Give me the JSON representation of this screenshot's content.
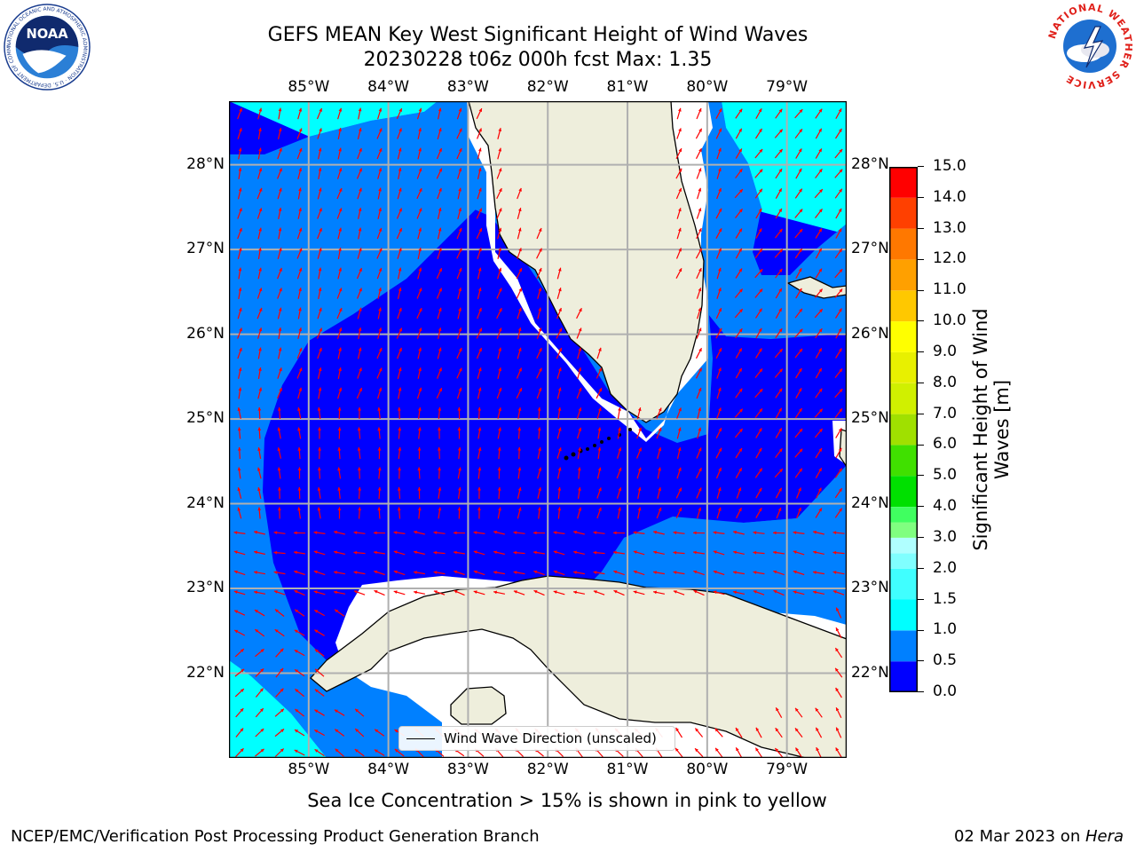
{
  "header": {
    "title_line1": "GEFS MEAN Key West Significant Height of Wind Waves",
    "title_line2": "20230228 t06z 000h fcst   Max: 1.35"
  },
  "logos": {
    "noaa": {
      "text": "NOAA",
      "ring_text": "NATIONAL OCEANIC AND ATMOSPHERIC ADMINISTRATION · U.S. DEPARTMENT OF COMMERCE"
    },
    "nws": {
      "ring_text": "NATIONAL WEATHER SERVICE"
    }
  },
  "map": {
    "projection": "plate-carree",
    "extent": {
      "lon_min": -86.0,
      "lon_max": -78.25,
      "lat_min": 21.0,
      "lat_max": 28.75
    },
    "lon_ticks": [
      "85°W",
      "84°W",
      "83°W",
      "82°W",
      "81°W",
      "80°W",
      "79°W"
    ],
    "lat_ticks": [
      "28°N",
      "27°N",
      "26°N",
      "25°N",
      "24°N",
      "23°N",
      "22°N"
    ],
    "land_color": "#eeeedc",
    "arrow_color": "#ff0000",
    "legend_label": "Wind Wave Direction (unscaled)"
  },
  "colorbar": {
    "title": "Significant Height of Wind Waves [m]",
    "ticks": [
      "15.0",
      "14.0",
      "13.0",
      "12.0",
      "11.0",
      "10.0",
      "9.0",
      "8.0",
      "7.0",
      "6.0",
      "5.0",
      "4.0",
      "3.0",
      "2.0",
      "1.5",
      "1.0",
      "0.5",
      "0.0"
    ],
    "bins": [
      {
        "from": 0.0,
        "to": 0.5,
        "color": "#0000ff"
      },
      {
        "from": 0.5,
        "to": 1.0,
        "color": "#0080ff"
      },
      {
        "from": 1.0,
        "to": 1.5,
        "color": "#00ffff"
      },
      {
        "from": 1.5,
        "to": 2.0,
        "color": "#40ffff"
      },
      {
        "from": 2.0,
        "to": 2.5,
        "color": "#80ffff"
      },
      {
        "from": 2.5,
        "to": 3.0,
        "color": "#b0ffff"
      },
      {
        "from": 3.0,
        "to": 3.5,
        "color": "#80ff80"
      },
      {
        "from": 3.5,
        "to": 4.0,
        "color": "#40ff60"
      },
      {
        "from": 4.0,
        "to": 5.0,
        "color": "#00e000"
      },
      {
        "from": 5.0,
        "to": 6.0,
        "color": "#40e000"
      },
      {
        "from": 6.0,
        "to": 7.0,
        "color": "#a0e000"
      },
      {
        "from": 7.0,
        "to": 8.0,
        "color": "#d0f000"
      },
      {
        "from": 8.0,
        "to": 9.0,
        "color": "#e8f000"
      },
      {
        "from": 9.0,
        "to": 10.0,
        "color": "#ffff00"
      },
      {
        "from": 10.0,
        "to": 11.0,
        "color": "#ffc800"
      },
      {
        "from": 11.0,
        "to": 12.0,
        "color": "#ffa000"
      },
      {
        "from": 12.0,
        "to": 13.0,
        "color": "#ff7800"
      },
      {
        "from": 13.0,
        "to": 14.0,
        "color": "#ff4000"
      },
      {
        "from": 14.0,
        "to": 15.0,
        "color": "#ff0000"
      }
    ]
  },
  "footnote": "Sea Ice Concentration > 15% is shown in pink to yellow",
  "credits": {
    "left": "NCEP/EMC/Verification Post Processing Product Generation Branch",
    "right_date": "02 Mar 2023 on ",
    "right_system": "Hera"
  }
}
